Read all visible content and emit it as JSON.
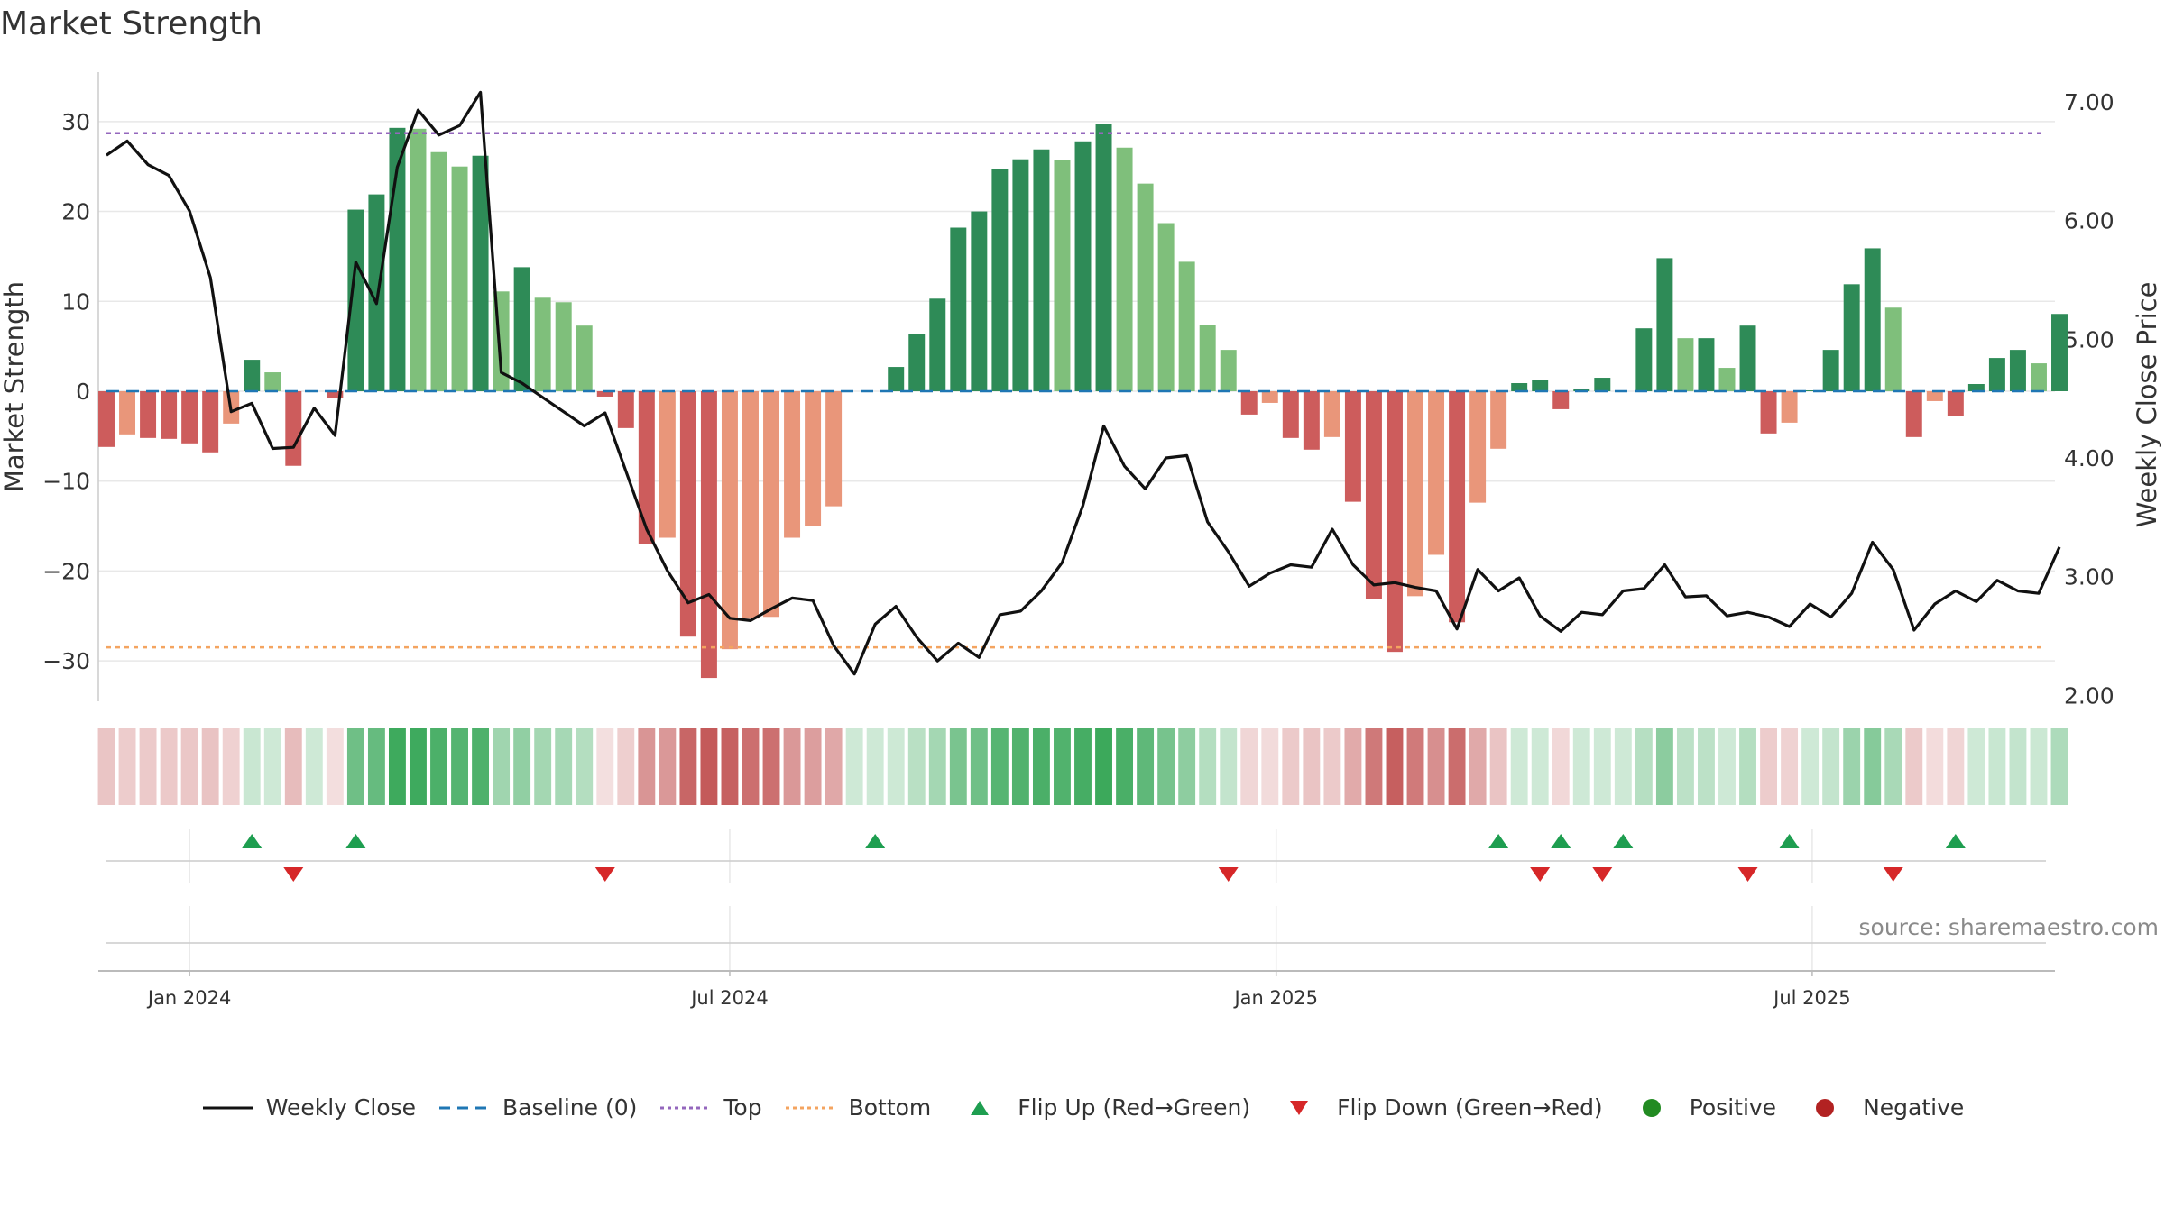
{
  "title": "Market Strength",
  "source": "source: sharemaestro.com",
  "colors": {
    "pos_dark": "#2e8b57",
    "pos_light": "#7fbf7b",
    "neg_dark": "#cd5c5c",
    "neg_light": "#e9967a",
    "price": "#111111",
    "baseline": "#1f77b4",
    "top": "#9467bd",
    "bottom": "#f4a460",
    "flip_up": "#1e9e50",
    "flip_down": "#d62728",
    "positive": "#228b22",
    "negative": "#b22222",
    "grid": "#e8e8e8"
  },
  "chart_data": {
    "type": "bar+line",
    "title": "Market Strength",
    "ylabel_left": "Market Strength",
    "ylabel_right": "Weekly Close Price",
    "y_left_ticks": [
      30,
      20,
      10,
      0,
      -10,
      -20,
      -30
    ],
    "y_left_tick_labels": [
      "30",
      "20",
      "10",
      "0",
      "−10",
      "−20",
      "−30"
    ],
    "y_left_range": [
      -34.5,
      35.5
    ],
    "y_right_ticks": [
      7.0,
      6.0,
      5.0,
      4.0,
      3.0,
      2.0
    ],
    "y_right_tick_labels": [
      "7.00",
      "6.00",
      "5.00",
      "4.00",
      "3.00",
      "2.00"
    ],
    "y_right_range": [
      1.95,
      7.25
    ],
    "x_ticks": [
      {
        "label": "Jan 2024",
        "week": 4
      },
      {
        "label": "Jul 2024",
        "week": 30
      },
      {
        "label": "Jan 2025",
        "week": 56.3
      },
      {
        "label": "Jul 2025",
        "week": 82.1
      }
    ],
    "top_line": 28.7,
    "bottom_line": -28.5,
    "strength": [
      -6.2,
      -4.8,
      -5.2,
      -5.3,
      -5.8,
      -6.8,
      -3.6,
      3.5,
      2.1,
      -8.3,
      0,
      -0.8,
      20.2,
      21.9,
      29.3,
      29.2,
      26.6,
      25.0,
      26.2,
      11.1,
      13.8,
      10.4,
      9.9,
      7.3,
      -0.6,
      -4.1,
      -17.0,
      -16.3,
      -27.3,
      -31.9,
      -28.7,
      -25.3,
      -25.1,
      -16.3,
      -15.0,
      -12.8,
      0,
      0,
      2.7,
      6.4,
      10.3,
      18.2,
      20.0,
      24.7,
      25.8,
      26.9,
      25.7,
      27.8,
      29.7,
      27.1,
      23.1,
      18.7,
      14.4,
      7.4,
      4.6,
      -2.6,
      -1.3,
      -5.2,
      -6.5,
      -5.1,
      -12.3,
      -23.1,
      -29.0,
      -22.8,
      -18.2,
      -25.7,
      -12.4,
      -6.4,
      0.9,
      1.3,
      -2.0,
      0.3,
      1.5,
      0,
      7.0,
      14.8,
      5.9,
      5.9,
      2.6,
      7.3,
      -4.7,
      -3.5,
      0.1,
      4.6,
      11.9,
      15.9,
      9.3,
      -5.1,
      -1.1,
      -2.8,
      0.8,
      3.7,
      4.6,
      3.1,
      8.6
    ],
    "weekly_close": [
      6.55,
      6.67,
      6.47,
      6.38,
      6.08,
      5.52,
      4.39,
      4.46,
      4.08,
      4.09,
      4.42,
      4.19,
      5.65,
      5.3,
      6.45,
      6.93,
      6.72,
      6.8,
      7.08,
      4.72,
      4.63,
      4.51,
      4.39,
      4.27,
      4.38,
      3.89,
      3.4,
      3.05,
      2.78,
      2.85,
      2.65,
      2.63,
      2.73,
      2.82,
      2.8,
      2.42,
      2.18,
      2.6,
      2.75,
      2.49,
      2.29,
      2.44,
      2.32,
      2.68,
      2.71,
      2.88,
      3.12,
      3.6,
      4.27,
      3.93,
      3.74,
      4.0,
      4.02,
      3.46,
      3.21,
      2.92,
      3.03,
      3.1,
      3.08,
      3.4,
      3.1,
      2.93,
      2.95,
      2.91,
      2.88,
      2.56,
      3.06,
      2.88,
      2.99,
      2.67,
      2.54,
      2.7,
      2.68,
      2.88,
      2.9,
      3.1,
      2.83,
      2.84,
      2.67,
      2.7,
      2.66,
      2.58,
      2.77,
      2.66,
      2.86,
      3.29,
      3.06,
      2.55,
      2.77,
      2.88,
      2.79,
      2.97,
      2.88,
      2.86,
      3.25
    ],
    "flip_up_weeks": [
      7,
      12,
      37,
      67,
      70,
      73,
      81,
      89
    ],
    "flip_down_weeks": [
      9,
      24,
      54,
      69,
      72,
      79,
      86
    ]
  },
  "legend": [
    {
      "key": "weekly_close",
      "label": "Weekly Close",
      "symbol": "line-solid",
      "color": "#111111"
    },
    {
      "key": "baseline",
      "label": "Baseline (0)",
      "symbol": "line-dashed",
      "color": "#1f77b4"
    },
    {
      "key": "top",
      "label": "Top",
      "symbol": "line-dotted",
      "color": "#9467bd"
    },
    {
      "key": "bottom",
      "label": "Bottom",
      "symbol": "line-dotted",
      "color": "#f4a460"
    },
    {
      "key": "flip_up",
      "label": "Flip Up (Red→Green)",
      "symbol": "triangle-up",
      "color": "#1e9e50"
    },
    {
      "key": "flip_down",
      "label": "Flip Down (Green→Red)",
      "symbol": "triangle-down",
      "color": "#d62728"
    },
    {
      "key": "positive",
      "label": "Positive",
      "symbol": "circle",
      "color": "#228b22"
    },
    {
      "key": "negative",
      "label": "Negative",
      "symbol": "circle",
      "color": "#b22222"
    }
  ]
}
